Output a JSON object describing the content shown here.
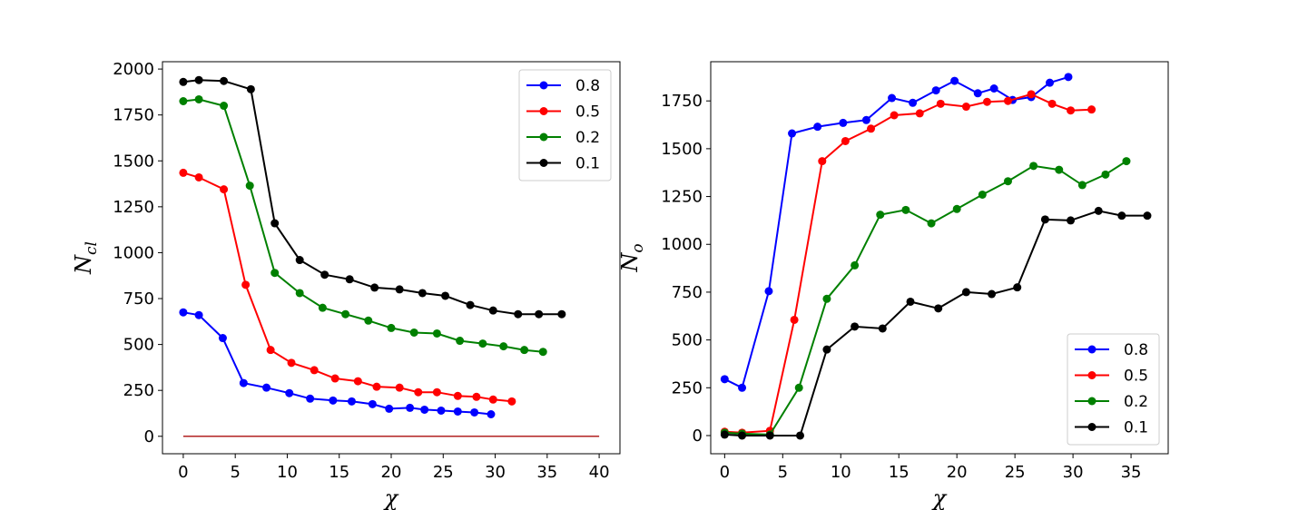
{
  "chart_data": [
    {
      "type": "line",
      "xlabel": "χ",
      "ylabel_main": "N",
      "ylabel_sub": "cl",
      "xlim": [
        -2,
        42
      ],
      "ylim": [
        -95,
        2040
      ],
      "xticks": [
        0,
        5,
        10,
        15,
        20,
        25,
        30,
        35,
        40
      ],
      "yticks": [
        0,
        250,
        500,
        750,
        1000,
        1250,
        1500,
        1750,
        2000
      ],
      "legend_position": "top-right",
      "baseline": {
        "x": [
          0,
          40
        ],
        "y": [
          0,
          0
        ],
        "color": "#b22222"
      },
      "series": [
        {
          "name": "0.8",
          "color": "#0000ff",
          "x": [
            0,
            1.5,
            3.8,
            5.8,
            8,
            10.2,
            12.2,
            14.4,
            16.2,
            18.2,
            19.8,
            21.8,
            23.2,
            24.8,
            26.4,
            28,
            29.6
          ],
          "y": [
            675,
            660,
            535,
            290,
            265,
            235,
            205,
            195,
            190,
            175,
            150,
            155,
            145,
            140,
            135,
            130,
            120
          ]
        },
        {
          "name": "0.5",
          "color": "#ff0000",
          "x": [
            0,
            1.5,
            3.9,
            6,
            8.4,
            10.4,
            12.6,
            14.6,
            16.8,
            18.6,
            20.8,
            22.6,
            24.4,
            26.4,
            28.2,
            29.8,
            31.6
          ],
          "y": [
            1435,
            1410,
            1345,
            825,
            470,
            400,
            360,
            315,
            300,
            270,
            265,
            240,
            240,
            220,
            215,
            200,
            190
          ]
        },
        {
          "name": "0.2",
          "color": "#008000",
          "x": [
            0,
            1.5,
            3.9,
            6.4,
            8.8,
            11.2,
            13.4,
            15.6,
            17.8,
            20,
            22.2,
            24.4,
            26.6,
            28.8,
            30.8,
            32.8,
            34.6
          ],
          "y": [
            1825,
            1835,
            1800,
            1365,
            890,
            780,
            700,
            665,
            630,
            590,
            565,
            560,
            520,
            505,
            490,
            470,
            460
          ]
        },
        {
          "name": "0.1",
          "color": "#000000",
          "x": [
            0,
            1.5,
            3.9,
            6.5,
            8.8,
            11.2,
            13.6,
            16,
            18.4,
            20.8,
            23,
            25.2,
            27.6,
            29.8,
            32.2,
            34.2,
            36.4
          ],
          "y": [
            1930,
            1940,
            1935,
            1890,
            1160,
            960,
            880,
            855,
            810,
            800,
            780,
            765,
            715,
            685,
            665,
            665,
            665
          ]
        }
      ]
    },
    {
      "type": "line",
      "xlabel": "χ",
      "ylabel_main": "N",
      "ylabel_sub": "o",
      "xlim": [
        -1.2,
        38.2
      ],
      "ylim": [
        -95,
        1955
      ],
      "xticks": [
        0,
        5,
        10,
        15,
        20,
        25,
        30,
        35
      ],
      "yticks": [
        0,
        250,
        500,
        750,
        1000,
        1250,
        1500,
        1750
      ],
      "legend_position": "bottom-right",
      "series": [
        {
          "name": "0.8",
          "color": "#0000ff",
          "x": [
            0,
            1.5,
            3.8,
            5.8,
            8,
            10.2,
            12.2,
            14.4,
            16.2,
            18.2,
            19.8,
            21.8,
            23.2,
            24.8,
            26.4,
            28,
            29.6
          ],
          "y": [
            295,
            250,
            755,
            1580,
            1615,
            1635,
            1650,
            1765,
            1740,
            1805,
            1855,
            1790,
            1815,
            1755,
            1770,
            1845,
            1875
          ]
        },
        {
          "name": "0.5",
          "color": "#ff0000",
          "x": [
            0,
            1.5,
            3.9,
            6,
            8.4,
            10.4,
            12.6,
            14.6,
            16.8,
            18.6,
            20.8,
            22.6,
            24.4,
            26.4,
            28.2,
            29.8,
            31.6
          ],
          "y": [
            20,
            15,
            25,
            605,
            1435,
            1540,
            1605,
            1675,
            1685,
            1735,
            1720,
            1745,
            1750,
            1785,
            1735,
            1700,
            1705
          ]
        },
        {
          "name": "0.2",
          "color": "#008000",
          "x": [
            0,
            1.5,
            3.9,
            6.4,
            8.8,
            11.2,
            13.4,
            15.6,
            17.8,
            20,
            22.2,
            24.4,
            26.6,
            28.8,
            30.8,
            32.8,
            34.6
          ],
          "y": [
            15,
            10,
            5,
            250,
            715,
            890,
            1155,
            1180,
            1110,
            1185,
            1260,
            1330,
            1410,
            1390,
            1310,
            1365,
            1435
          ]
        },
        {
          "name": "0.1",
          "color": "#000000",
          "x": [
            0,
            1.5,
            3.9,
            6.5,
            8.8,
            11.2,
            13.6,
            16,
            18.4,
            20.8,
            23,
            25.2,
            27.6,
            29.8,
            32.2,
            34.2,
            36.4
          ],
          "y": [
            5,
            0,
            0,
            0,
            450,
            570,
            560,
            700,
            665,
            750,
            740,
            775,
            1130,
            1125,
            1175,
            1150,
            1150
          ]
        }
      ]
    }
  ]
}
